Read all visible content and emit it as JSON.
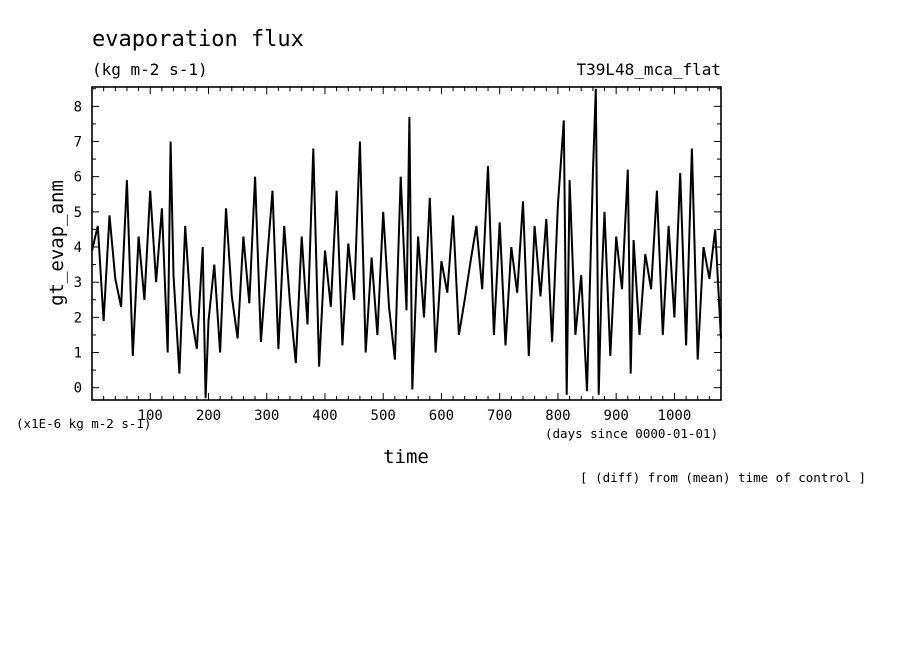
{
  "chart_data": {
    "type": "line",
    "title": "evaporation flux",
    "units": "(kg m-2 s-1)",
    "experiment": "T39L48_mca_flat",
    "xlabel": "time",
    "x_units": "(days since 0000-01-01)",
    "ylabel": "gt_evap_anm",
    "y_scale_note": "(x1E-6 kg m-2 s-1)",
    "footnote": "[ (diff) from (mean) time of control ]",
    "xlim": [
      0,
      1080
    ],
    "ylim": [
      -0.35,
      8.55
    ],
    "x_ticks": [
      100,
      200,
      300,
      400,
      500,
      600,
      700,
      800,
      900,
      1000
    ],
    "x_tick_labels": [
      "100",
      "200",
      "300",
      "400",
      "500",
      "600",
      "700",
      "800",
      "900",
      "1000"
    ],
    "y_ticks": [
      0,
      1,
      2,
      3,
      4,
      5,
      6,
      7,
      8
    ],
    "y_tick_labels": [
      "0",
      "1",
      "2",
      "3",
      "4",
      "5",
      "6",
      "7",
      "8"
    ],
    "series": [
      {
        "color": "#000000",
        "x": [
          0,
          10,
          20,
          30,
          40,
          50,
          60,
          70,
          80,
          90,
          100,
          110,
          120,
          130,
          135,
          140,
          150,
          160,
          170,
          180,
          190,
          195,
          200,
          210,
          220,
          230,
          240,
          250,
          260,
          270,
          280,
          290,
          300,
          310,
          320,
          330,
          340,
          350,
          360,
          370,
          380,
          390,
          400,
          410,
          420,
          430,
          440,
          450,
          460,
          470,
          480,
          490,
          500,
          510,
          520,
          530,
          540,
          545,
          550,
          560,
          570,
          580,
          590,
          600,
          610,
          620,
          630,
          640,
          650,
          660,
          670,
          680,
          690,
          700,
          710,
          720,
          730,
          740,
          750,
          760,
          770,
          780,
          790,
          800,
          810,
          815,
          820,
          830,
          840,
          850,
          860,
          865,
          870,
          875,
          880,
          890,
          900,
          910,
          920,
          925,
          930,
          940,
          950,
          960,
          970,
          980,
          990,
          1000,
          1010,
          1020,
          1030,
          1040,
          1050,
          1060,
          1070,
          1080
        ],
        "y": [
          3.9,
          4.6,
          1.9,
          4.9,
          3.1,
          2.3,
          5.9,
          0.9,
          4.3,
          2.5,
          5.6,
          3.0,
          5.1,
          1.0,
          7.0,
          3.2,
          0.4,
          4.6,
          2.1,
          1.1,
          4.0,
          -0.3,
          1.9,
          3.5,
          1.0,
          5.1,
          2.6,
          1.4,
          4.3,
          2.4,
          6.0,
          1.3,
          3.5,
          5.6,
          1.1,
          4.6,
          2.4,
          0.7,
          4.3,
          1.8,
          6.8,
          0.6,
          3.9,
          2.3,
          5.6,
          1.2,
          4.1,
          2.5,
          7.0,
          1.0,
          3.7,
          1.5,
          5.0,
          2.3,
          0.8,
          6.0,
          2.2,
          7.7,
          -0.05,
          4.3,
          2.0,
          5.4,
          1.0,
          3.6,
          2.7,
          4.9,
          1.5,
          2.5,
          3.6,
          4.6,
          2.8,
          6.3,
          1.5,
          4.7,
          1.2,
          4.0,
          2.7,
          5.3,
          0.9,
          4.6,
          2.6,
          4.8,
          1.3,
          5.2,
          7.6,
          -0.2,
          5.9,
          1.5,
          3.2,
          -0.1,
          6.1,
          8.5,
          -0.2,
          3.0,
          5.0,
          0.9,
          4.3,
          2.8,
          6.2,
          0.4,
          4.2,
          1.5,
          3.8,
          2.8,
          5.6,
          1.5,
          4.6,
          2.0,
          6.1,
          1.2,
          6.8,
          0.8,
          4.0,
          3.1,
          4.5,
          1.4
        ]
      }
    ]
  }
}
